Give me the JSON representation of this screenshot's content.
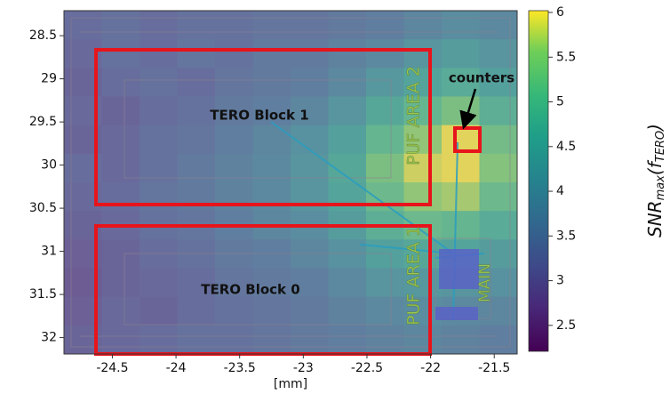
{
  "chart_data": {
    "type": "heatmap",
    "xlabel": "[mm]",
    "xlim": [
      -24.88,
      -21.32
    ],
    "ylim": [
      28.21,
      32.19
    ],
    "y_inverted": true,
    "xticks": [
      -24.5,
      -24.0,
      -23.5,
      -23.0,
      -22.5,
      -22.0,
      -21.5
    ],
    "yticks": [
      28.5,
      29.0,
      29.5,
      30.0,
      30.5,
      31.0,
      31.5,
      32.0
    ],
    "colormap": "viridis",
    "zlim": [
      2.21,
      6.02
    ],
    "zticks": [
      2.5,
      3.0,
      3.5,
      4.0,
      4.5,
      5.0,
      5.5,
      6.0
    ],
    "colorbar_label": [
      "SNR",
      "max",
      "(f",
      "TERO",
      ")"
    ],
    "z": [
      [
        3.2,
        3.3,
        3.2,
        3.3,
        3.3,
        3.4,
        3.4,
        3.5,
        3.6,
        3.8,
        4.0,
        3.9
      ],
      [
        3.1,
        3.3,
        3.2,
        3.4,
        3.3,
        3.5,
        3.5,
        3.7,
        3.9,
        4.2,
        4.4,
        4.2
      ],
      [
        3.0,
        3.2,
        3.3,
        3.2,
        3.4,
        3.5,
        3.6,
        3.9,
        4.3,
        4.6,
        4.8,
        4.5
      ],
      [
        3.1,
        3.0,
        3.2,
        3.3,
        3.5,
        3.6,
        3.8,
        4.2,
        4.7,
        5.1,
        5.4,
        4.9
      ],
      [
        3.0,
        3.1,
        3.3,
        3.4,
        3.6,
        3.8,
        4.1,
        4.5,
        5.1,
        5.6,
        6.0,
        5.3
      ],
      [
        3.2,
        3.1,
        3.3,
        3.5,
        3.7,
        3.9,
        4.2,
        4.7,
        5.4,
        5.9,
        6.0,
        5.5
      ],
      [
        3.1,
        3.2,
        3.4,
        3.5,
        3.7,
        3.9,
        4.2,
        4.6,
        5.2,
        5.6,
        5.7,
        5.2
      ],
      [
        3.0,
        3.1,
        3.3,
        3.4,
        3.6,
        3.8,
        4.0,
        4.4,
        4.9,
        5.2,
        5.1,
        4.8
      ],
      [
        2.9,
        3.0,
        3.2,
        3.3,
        3.5,
        3.6,
        3.8,
        4.1,
        4.5,
        4.7,
        4.6,
        4.4
      ],
      [
        2.8,
        3.0,
        3.1,
        3.2,
        3.4,
        3.5,
        3.6,
        3.9,
        4.2,
        4.3,
        4.2,
        4.1
      ],
      [
        2.9,
        3.1,
        3.0,
        3.2,
        3.3,
        3.4,
        3.5,
        3.7,
        3.9,
        4.0,
        3.9,
        3.8
      ],
      [
        3.0,
        3.1,
        3.2,
        3.3,
        3.3,
        3.4,
        3.5,
        3.6,
        3.7,
        3.8,
        3.7,
        3.6
      ]
    ],
    "annotations": [
      "TERO Block 1",
      "TERO Block 0",
      "counters",
      "PUF AREA 2",
      "PUF AREA 1",
      "MAIN"
    ]
  }
}
